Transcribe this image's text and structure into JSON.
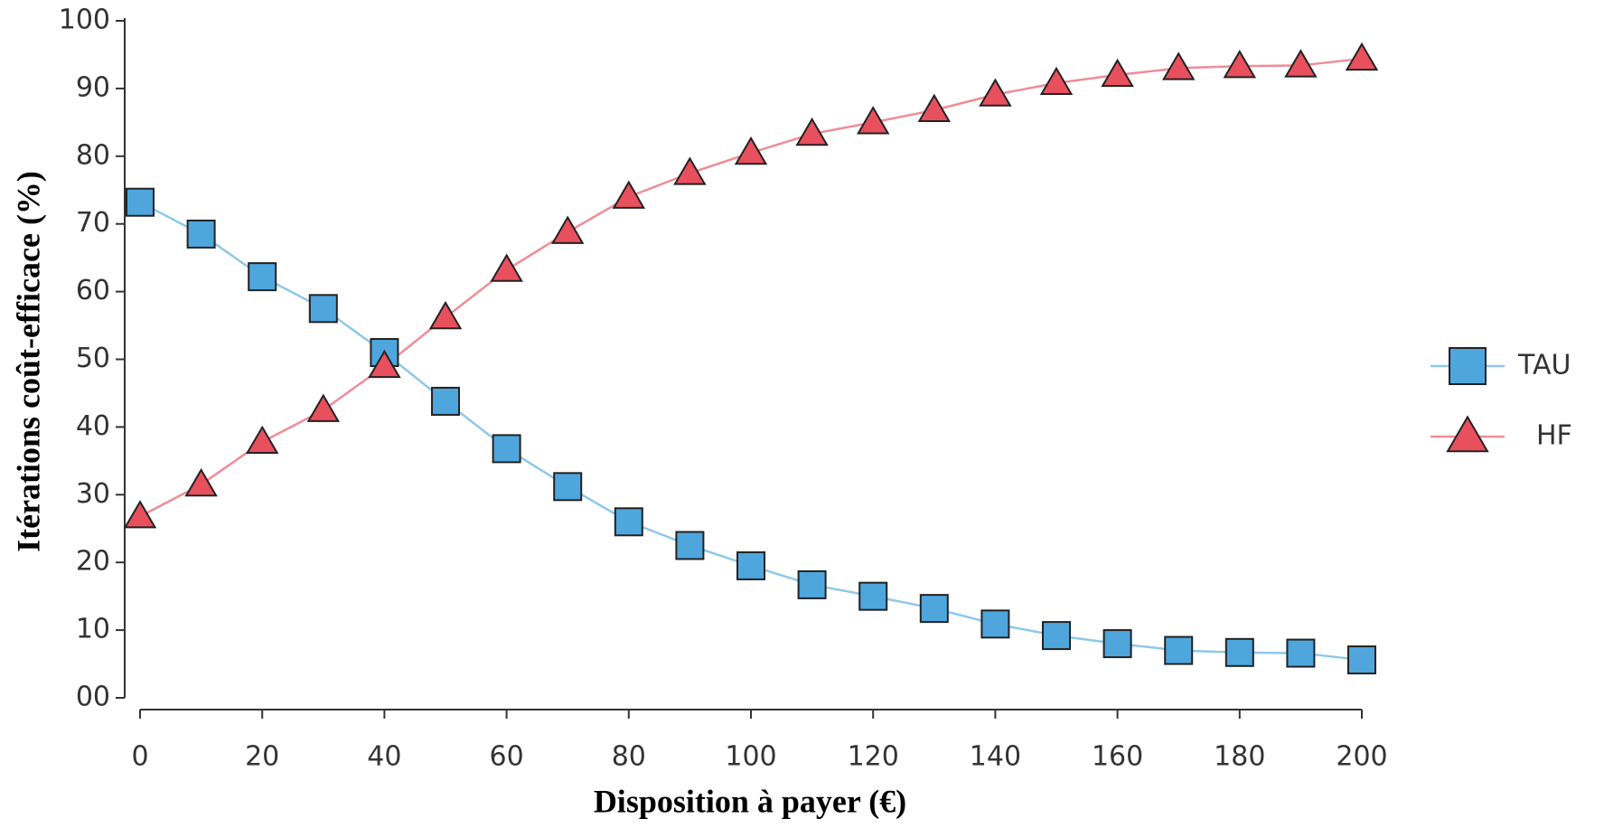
{
  "chart_data": {
    "type": "line",
    "xlabel": "Disposition à payer (€)",
    "ylabel": "Itérations coût-efficace (%)",
    "x": [
      0,
      10,
      20,
      30,
      40,
      50,
      60,
      70,
      80,
      90,
      100,
      110,
      120,
      130,
      140,
      150,
      160,
      170,
      180,
      190,
      200
    ],
    "series": [
      {
        "name": "TAU",
        "color": "#4ea6dd",
        "line_color": "#8ec8ea",
        "marker": "square",
        "values": [
          73.2,
          68.5,
          62.2,
          57.5,
          51,
          43.8,
          36.8,
          31.2,
          26,
          22.5,
          19.5,
          16.7,
          15,
          13.2,
          10.9,
          9.2,
          8,
          7,
          6.7,
          6.6,
          5.6
        ]
      },
      {
        "name": "HF",
        "color": "#e8505e",
        "line_color": "#f08c96",
        "marker": "triangle",
        "values": [
          26.8,
          31.5,
          37.8,
          42.5,
          49,
          56.2,
          63.2,
          68.8,
          74,
          77.5,
          80.5,
          83.3,
          85,
          86.8,
          89.1,
          90.8,
          92,
          93,
          93.3,
          93.4,
          94.4
        ]
      }
    ],
    "xlim": [
      0,
      200
    ],
    "xticks": [
      0,
      20,
      40,
      60,
      80,
      100,
      120,
      140,
      160,
      180,
      200
    ],
    "ylim": [
      0,
      100
    ],
    "yticks": [
      {
        "value": 0,
        "label": "00"
      },
      10,
      20,
      30,
      40,
      50,
      60,
      70,
      80,
      90,
      100
    ],
    "grid": false,
    "legend": "right"
  }
}
